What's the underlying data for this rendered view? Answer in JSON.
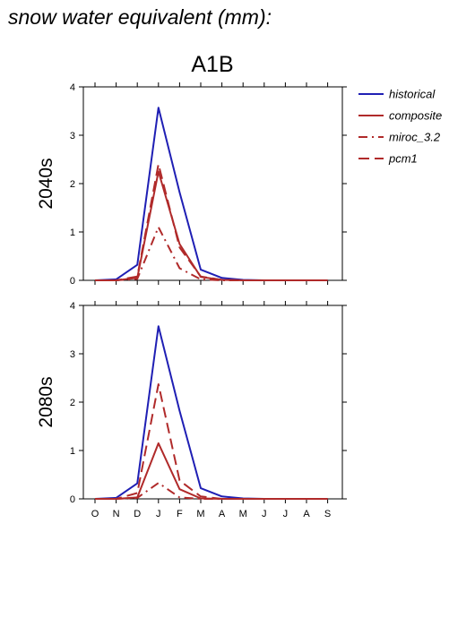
{
  "figure": {
    "title": "snow water equivalent (mm):",
    "subtitle": "A1B"
  },
  "chart_data": [
    {
      "type": "line",
      "ylabel": "2040s",
      "ylim": [
        0,
        4
      ],
      "yticks": [
        0,
        1,
        2,
        3,
        4
      ],
      "categories": [
        "O",
        "N",
        "D",
        "J",
        "F",
        "M",
        "A",
        "M",
        "J",
        "J",
        "A",
        "S"
      ],
      "show_x_tick_labels": false,
      "grid": false,
      "legend_position": "right",
      "series": [
        {
          "name": "historical",
          "color": "#1f1fb4",
          "style": "solid",
          "values": [
            0,
            0.02,
            0.32,
            3.57,
            1.82,
            0.22,
            0.05,
            0.01,
            0,
            0,
            0,
            0
          ]
        },
        {
          "name": "composite",
          "color": "#b02a2a",
          "style": "solid",
          "values": [
            0,
            0,
            0.05,
            2.25,
            0.75,
            0.07,
            0.01,
            0,
            0,
            0,
            0,
            0
          ]
        },
        {
          "name": "miroc_3.2",
          "color": "#b02a2a",
          "style": "dashdot",
          "values": [
            0,
            0,
            0.03,
            1.1,
            0.25,
            0.02,
            0,
            0,
            0,
            0,
            0,
            0
          ]
        },
        {
          "name": "pcm1",
          "color": "#b02a2a",
          "style": "dashed",
          "values": [
            0,
            0,
            0.08,
            2.4,
            0.68,
            0.08,
            0.01,
            0,
            0,
            0,
            0,
            0
          ]
        }
      ]
    },
    {
      "type": "line",
      "ylabel": "2080s",
      "ylim": [
        0,
        4
      ],
      "yticks": [
        0,
        1,
        2,
        3,
        4
      ],
      "categories": [
        "O",
        "N",
        "D",
        "J",
        "F",
        "M",
        "A",
        "M",
        "J",
        "J",
        "A",
        "S"
      ],
      "show_x_tick_labels": true,
      "grid": false,
      "series": [
        {
          "name": "historical",
          "color": "#1f1fb4",
          "style": "solid",
          "values": [
            0,
            0.02,
            0.32,
            3.57,
            1.82,
            0.22,
            0.05,
            0.01,
            0,
            0,
            0,
            0
          ]
        },
        {
          "name": "composite",
          "color": "#b02a2a",
          "style": "solid",
          "values": [
            0,
            0,
            0.03,
            1.15,
            0.2,
            0.01,
            0,
            0,
            0,
            0,
            0,
            0
          ]
        },
        {
          "name": "miroc_3.2",
          "color": "#b02a2a",
          "style": "dashdot",
          "values": [
            0,
            0,
            0.02,
            0.33,
            0.03,
            0,
            0,
            0,
            0,
            0,
            0,
            0
          ]
        },
        {
          "name": "pcm1",
          "color": "#b02a2a",
          "style": "dashed",
          "values": [
            0,
            0,
            0.12,
            2.37,
            0.38,
            0.05,
            0,
            0,
            0,
            0,
            0,
            0
          ]
        }
      ]
    }
  ]
}
